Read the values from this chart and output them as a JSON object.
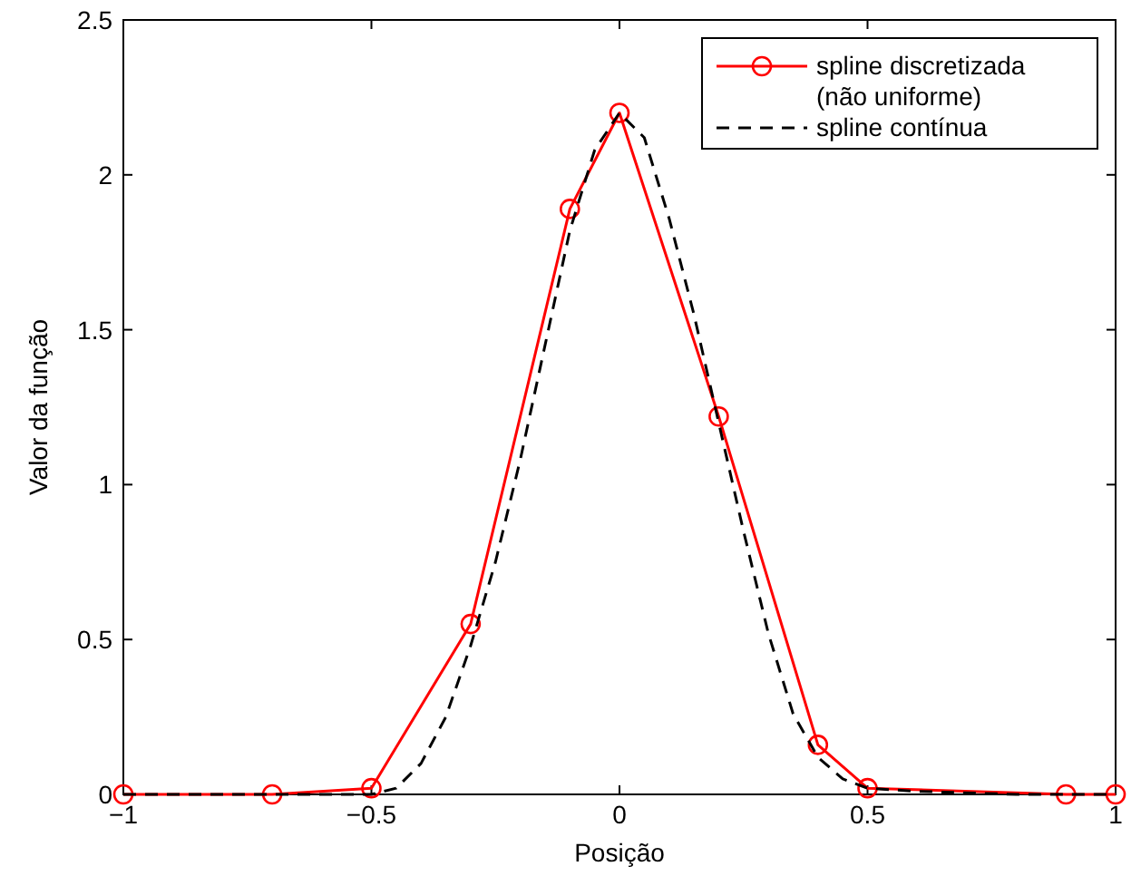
{
  "chart_data": {
    "type": "line",
    "xlabel": "Posição",
    "ylabel": "Valor da função",
    "xlim": [
      -1,
      1
    ],
    "ylim": [
      0,
      2.5
    ],
    "xticks": [
      {
        "value": -1,
        "label": "−1"
      },
      {
        "value": -0.5,
        "label": "−0.5"
      },
      0,
      0.5,
      1
    ],
    "yticks": [
      0,
      0.5,
      1,
      1.5,
      2,
      2.5
    ],
    "grid": false,
    "legend": "top right",
    "series": [
      {
        "name": "spline discretizada (não uniforme)",
        "color": "#ff0000",
        "marker": "circle",
        "line_style": "solid",
        "x": [
          -1,
          -0.7,
          -0.5,
          -0.3,
          -0.1,
          0,
          0.2,
          0.4,
          0.5,
          0.9,
          1
        ],
        "values": [
          0,
          0,
          0.02,
          0.55,
          1.89,
          2.2,
          1.22,
          0.16,
          0.02,
          0,
          0
        ]
      },
      {
        "name": "spline contínua",
        "color": "#000000",
        "marker": "none",
        "line_style": "dashed",
        "x": [
          -1,
          -0.7,
          -0.5,
          -0.45,
          -0.4,
          -0.35,
          -0.3,
          -0.25,
          -0.2,
          -0.15,
          -0.1,
          -0.05,
          0,
          0.05,
          0.1,
          0.15,
          0.2,
          0.25,
          0.3,
          0.35,
          0.4,
          0.45,
          0.5,
          0.6,
          0.8,
          1
        ],
        "values": [
          0,
          0,
          0,
          0.02,
          0.1,
          0.25,
          0.48,
          0.75,
          1.08,
          1.45,
          1.82,
          2.08,
          2.2,
          2.12,
          1.86,
          1.55,
          1.2,
          0.85,
          0.52,
          0.26,
          0.12,
          0.05,
          0.02,
          0.01,
          0,
          0
        ]
      }
    ]
  }
}
